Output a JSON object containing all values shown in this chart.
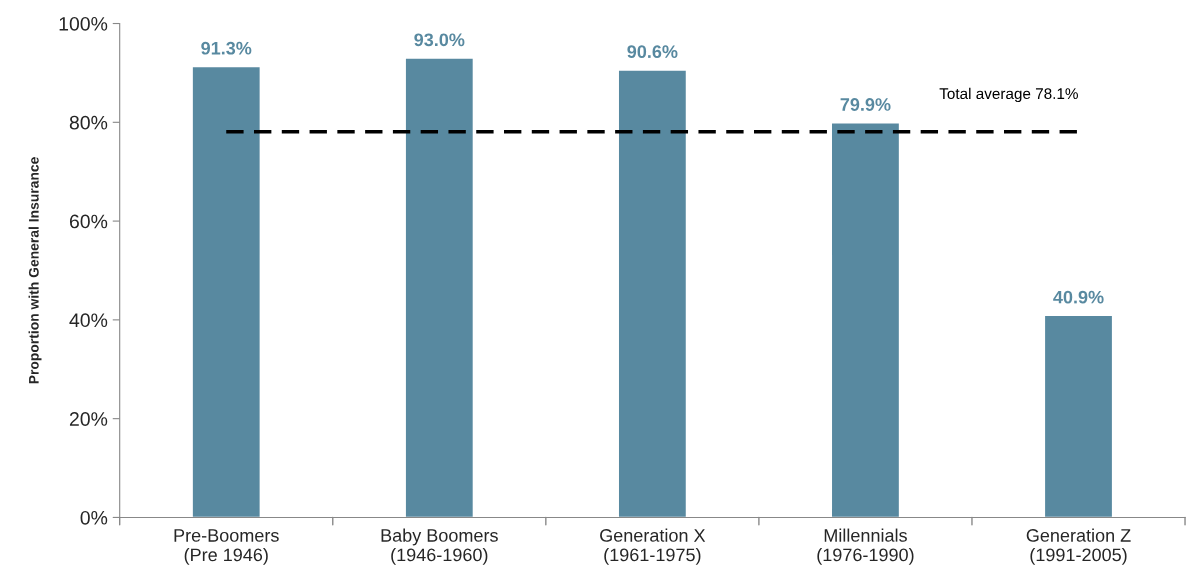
{
  "chart_data": {
    "type": "bar",
    "ylabel": "Proportion with General Insurance",
    "categories": [
      "Pre-Boomers\n(Pre 1946)",
      "Baby Boomers\n(1946-1960)",
      "Generation X\n(1961-1975)",
      "Millennials\n(1976-1990)",
      "Generation Z\n(1991-2005)"
    ],
    "values": [
      91.3,
      93.0,
      90.6,
      79.9,
      40.9
    ],
    "value_labels": [
      "91.3%",
      "93.0%",
      "90.6%",
      "79.9%",
      "40.9%"
    ],
    "color": "#5889a0",
    "ylim": [
      0,
      100
    ],
    "yticks": [
      {
        "value": 0,
        "label": "0%"
      },
      {
        "value": 20,
        "label": "20%"
      },
      {
        "value": 40,
        "label": "40%"
      },
      {
        "value": 60,
        "label": "60%"
      },
      {
        "value": 80,
        "label": "80%"
      },
      {
        "value": 100,
        "label": "100%"
      }
    ],
    "ref_lines": [
      {
        "axis": "y",
        "value": 78.1,
        "label": "Total average 78.1%",
        "color": "#000000",
        "line_style": "dashed"
      }
    ],
    "grid": false,
    "legend": false
  }
}
